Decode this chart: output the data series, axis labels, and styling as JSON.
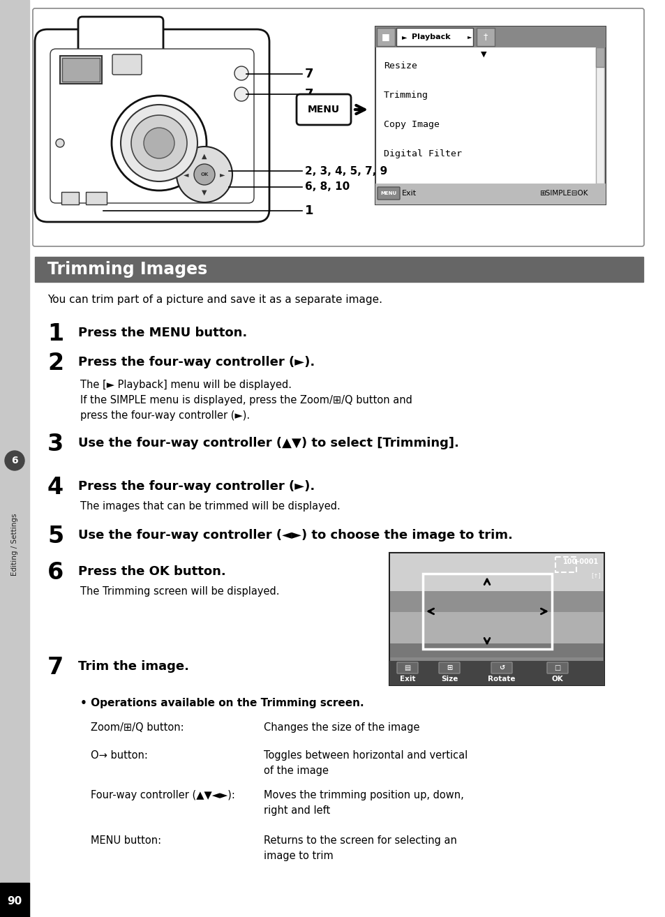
{
  "page_bg": "#ffffff",
  "sidebar_bg": "#c8c8c8",
  "title_bar_bg": "#666666",
  "title_bar_text": "Trimming Images",
  "title_bar_text_color": "#ffffff",
  "intro_text": "You can trim part of a picture and save it as a separate image.",
  "sidebar_label_text": "6",
  "sidebar_text": "Editing / Settings",
  "page_number": "90",
  "steps": [
    {
      "num": "1",
      "bold": "Press the MENU button.",
      "sub": []
    },
    {
      "num": "2",
      "bold": "Press the four-way controller (►).",
      "sub": [
        "The [► Playback] menu will be displayed.",
        "If the SIMPLE menu is displayed, press the Zoom/⊞/Q button and",
        "press the four-way controller (►)."
      ]
    },
    {
      "num": "3",
      "bold": "Use the four-way controller (▲▼) to select [Trimming].",
      "sub": []
    },
    {
      "num": "4",
      "bold": "Press the four-way controller (►).",
      "sub": [
        "The images that can be trimmed will be displayed."
      ]
    },
    {
      "num": "5",
      "bold": "Use the four-way controller (◄►) to choose the image to trim.",
      "sub": []
    },
    {
      "num": "6",
      "bold": "Press the OK button.",
      "sub": [
        "The Trimming screen will be displayed."
      ]
    },
    {
      "num": "7",
      "bold": "Trim the image.",
      "sub": []
    }
  ],
  "bullet_title": "Operations available on the Trimming screen.",
  "operations": [
    {
      "label": "Zoom/⊞/Q button:",
      "desc": [
        "Changes the size of the image"
      ]
    },
    {
      "label": "O→ button:",
      "desc": [
        "Toggles between horizontal and vertical",
        "of the image"
      ]
    },
    {
      "label": "Four-way controller (▲▼◄►):",
      "desc": [
        "Moves the trimming position up, down,",
        "right and left"
      ]
    },
    {
      "label": "MENU button:",
      "desc": [
        "Returns to the screen for selecting an",
        "image to trim"
      ]
    }
  ],
  "menu_items": [
    "Resize",
    "Trimming",
    "Copy Image",
    "Digital Filter"
  ]
}
